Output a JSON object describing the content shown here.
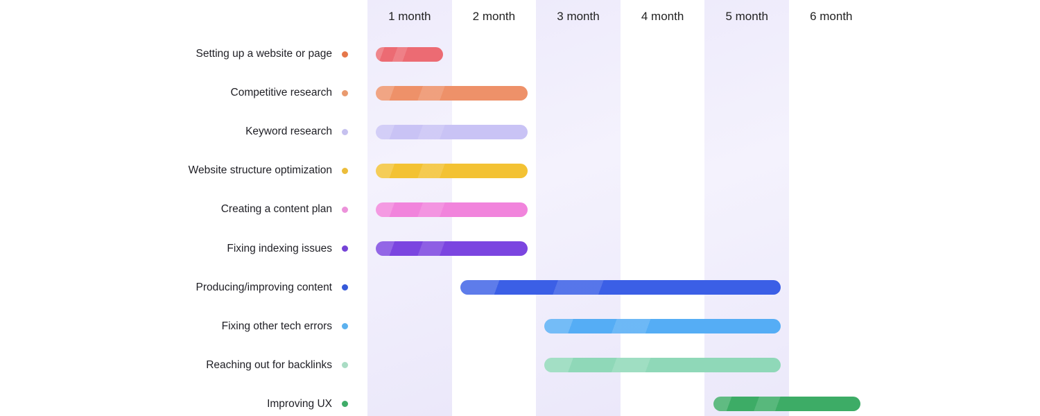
{
  "chart_data": {
    "type": "gantt",
    "title": "",
    "xlabel": "",
    "ylabel": "",
    "categories": [
      "1 month",
      "2 month",
      "3 month",
      "4 month",
      "5 month",
      "6 month"
    ],
    "tasks": [
      {
        "name": "Setting up a website or page",
        "start": 0.1,
        "end": 0.9,
        "color": "#ec6b73"
      },
      {
        "name": "Competitive research",
        "start": 0.1,
        "end": 1.9,
        "color": "#ee9169"
      },
      {
        "name": "Keyword research",
        "start": 0.1,
        "end": 1.9,
        "color": "#c9c3f5"
      },
      {
        "name": "Website structure optimization",
        "start": 0.1,
        "end": 1.9,
        "color": "#f3c233"
      },
      {
        "name": "Creating a content plan",
        "start": 0.1,
        "end": 1.9,
        "color": "#f184dc"
      },
      {
        "name": "Fixing indexing issues",
        "start": 0.1,
        "end": 1.9,
        "color": "#7b45e0"
      },
      {
        "name": "Producing/improving content",
        "start": 1.1,
        "end": 4.9,
        "color": "#3b5fe6"
      },
      {
        "name": "Fixing other tech errors",
        "start": 2.1,
        "end": 4.9,
        "color": "#55adf5"
      },
      {
        "name": "Reaching out for backlinks",
        "start": 2.1,
        "end": 4.9,
        "color": "#8fd8b8"
      },
      {
        "name": "Improving UX",
        "start": 4.1,
        "end": 5.85,
        "color": "#3dac66"
      }
    ],
    "dot_colors": [
      "#e5774a",
      "#e99a6e",
      "#c6c1ef",
      "#ecbd3a",
      "#ec92da",
      "#7543d6",
      "#3559d9",
      "#5cb1ee",
      "#a9dcc4",
      "#3fac68"
    ],
    "shaded_columns": [
      0,
      2,
      4
    ],
    "column_shade_color": "#ece9fb",
    "grid": false,
    "legend": "none"
  }
}
